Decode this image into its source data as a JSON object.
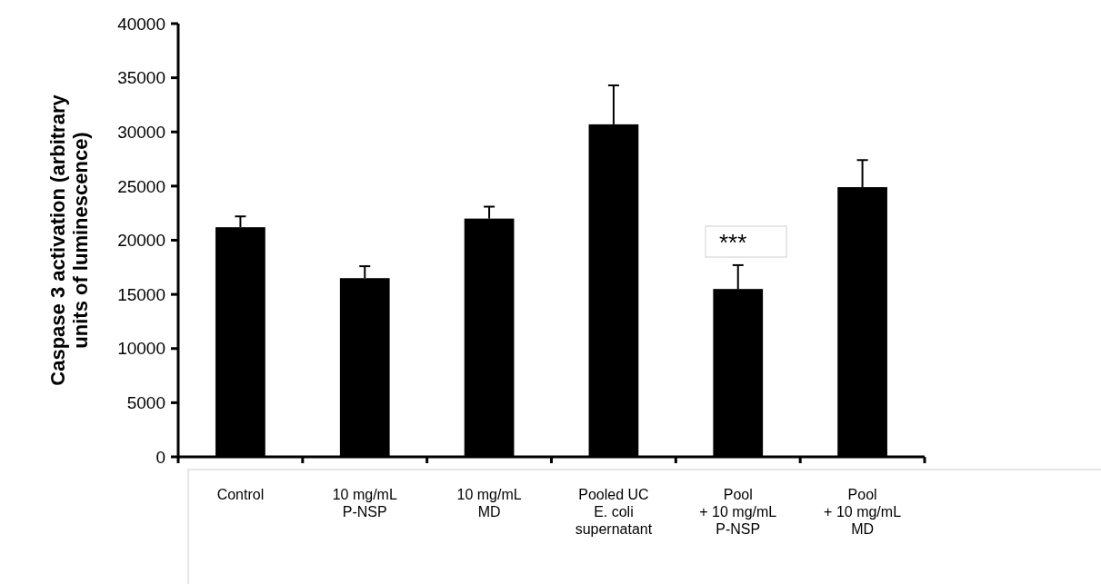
{
  "chart_data": {
    "type": "bar",
    "ylabel": "Caspase 3 activation (arbitrary\nunits of luminescence)",
    "categories": [
      "Control",
      "10 mg/mL\nP-NSP",
      "10 mg/mL\nMD",
      "Pooled UC\nE. coli\nsupernatant",
      "Pool\n+ 10 mg/mL\nP-NSP",
      "Pool\n+ 10 mg/mL\nMD"
    ],
    "values": [
      21200,
      16500,
      22000,
      30700,
      15500,
      24900
    ],
    "errors": [
      [
        21200,
        22200
      ],
      [
        16500,
        17600
      ],
      [
        22000,
        23100
      ],
      [
        30700,
        34300
      ],
      [
        15500,
        17700
      ],
      [
        24900,
        27400
      ]
    ],
    "color": "#000000",
    "ylim": [
      0,
      40000
    ],
    "yticks": [
      0,
      5000,
      10000,
      15000,
      20000,
      25000,
      30000,
      35000,
      40000
    ],
    "annotations": [
      "***"
    ]
  }
}
